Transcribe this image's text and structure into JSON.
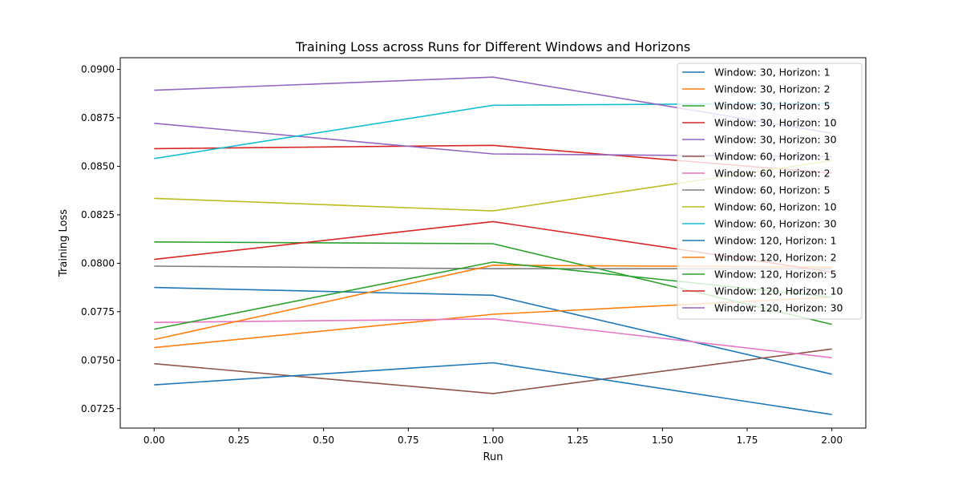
{
  "chart_data": {
    "type": "line",
    "title": "Training Loss across Runs for Different Windows and Horizons",
    "xlabel": "Run",
    "ylabel": "Training Loss",
    "xlim": [
      -0.1,
      2.1
    ],
    "ylim": [
      0.0715,
      0.0906
    ],
    "xticks": [
      0.0,
      0.25,
      0.5,
      0.75,
      1.0,
      1.25,
      1.5,
      1.75,
      2.0
    ],
    "xtick_labels": [
      "0.00",
      "0.25",
      "0.50",
      "0.75",
      "1.00",
      "1.25",
      "1.50",
      "1.75",
      "2.00"
    ],
    "yticks": [
      0.0725,
      0.075,
      0.0775,
      0.08,
      0.0825,
      0.085,
      0.0875,
      0.09
    ],
    "ytick_labels": [
      "0.0725",
      "0.0750",
      "0.0775",
      "0.0800",
      "0.0825",
      "0.0850",
      "0.0875",
      "0.0900"
    ],
    "grid": false,
    "legend_position": "top-right",
    "x": [
      0,
      1,
      2
    ],
    "series": [
      {
        "name": "Window: 30, Horizon: 1",
        "color": "#1f77b4",
        "values": [
          0.07875,
          0.07835,
          0.07428
        ]
      },
      {
        "name": "Window: 30, Horizon: 2",
        "color": "#ff7f0e",
        "values": [
          0.07565,
          0.07737,
          0.07825
        ]
      },
      {
        "name": "Window: 30, Horizon: 5",
        "color": "#2ca02c",
        "values": [
          0.0811,
          0.08101,
          0.07685
        ]
      },
      {
        "name": "Window: 30, Horizon: 10",
        "color": "#d62728",
        "values": [
          0.08591,
          0.08608,
          0.08465
        ]
      },
      {
        "name": "Window: 30, Horizon: 30",
        "color": "#9467bd",
        "values": [
          0.08722,
          0.08564,
          0.0855
        ]
      },
      {
        "name": "Window: 60, Horizon: 1",
        "color": "#8c564b",
        "values": [
          0.07482,
          0.07328,
          0.07558
        ]
      },
      {
        "name": "Window: 60, Horizon: 2",
        "color": "#e377c2",
        "values": [
          0.07695,
          0.07713,
          0.07513
        ]
      },
      {
        "name": "Window: 60, Horizon: 5",
        "color": "#7f7f7f",
        "values": [
          0.07985,
          0.07972,
          0.07972
        ]
      },
      {
        "name": "Window: 60, Horizon: 10",
        "color": "#bcbd22",
        "values": [
          0.08335,
          0.0827,
          0.0853
        ]
      },
      {
        "name": "Window: 60, Horizon: 30",
        "color": "#17becf",
        "values": [
          0.0854,
          0.08815,
          0.08825
        ]
      },
      {
        "name": "Window: 120, Horizon: 1",
        "color": "#1f77b4",
        "values": [
          0.07373,
          0.07487,
          0.0722
        ]
      },
      {
        "name": "Window: 120, Horizon: 2",
        "color": "#ff7f0e",
        "values": [
          0.07607,
          0.0799,
          0.0798
        ]
      },
      {
        "name": "Window: 120, Horizon: 5",
        "color": "#2ca02c",
        "values": [
          0.0766,
          0.08006,
          0.07825
        ]
      },
      {
        "name": "Window: 120, Horizon: 10",
        "color": "#d62728",
        "values": [
          0.0802,
          0.08215,
          0.07955
        ]
      },
      {
        "name": "Window: 120, Horizon: 30",
        "color": "#9467bd",
        "values": [
          0.08892,
          0.0896,
          0.0867
        ]
      }
    ]
  }
}
